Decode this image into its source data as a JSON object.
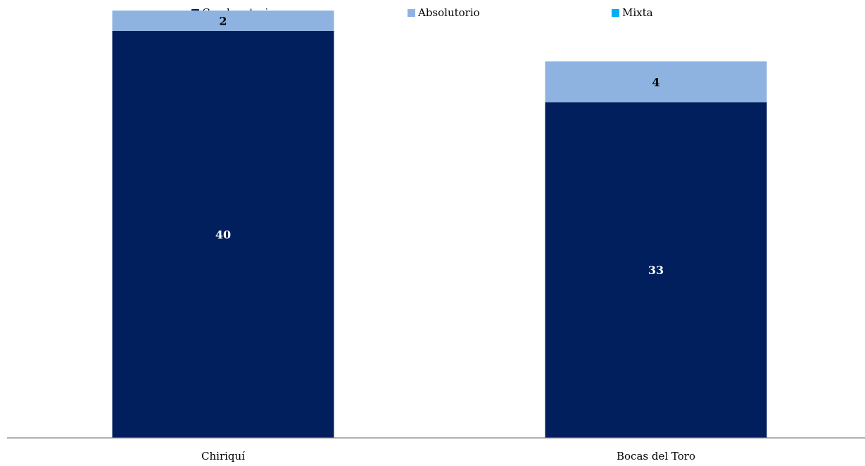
{
  "chart_data": {
    "type": "bar",
    "stacked": true,
    "categories": [
      "Chiriquí",
      "Bocas del Toro"
    ],
    "series": [
      {
        "name": "Condenatorio",
        "values": [
          40,
          33
        ],
        "color": "#001F5C",
        "label_color": "#FFFFFF"
      },
      {
        "name": "Absolutorio",
        "values": [
          2,
          4
        ],
        "color": "#8EB3E1",
        "label_color": "#000000"
      },
      {
        "name": "Mixta",
        "values": [
          0,
          0
        ],
        "color": "#00B0F0",
        "label_color": "#000000"
      }
    ],
    "title": "",
    "xlabel": "",
    "ylabel": "",
    "ylim": [
      0,
      42
    ],
    "grid": false,
    "legend_position": "top",
    "show_y_axis": false
  }
}
